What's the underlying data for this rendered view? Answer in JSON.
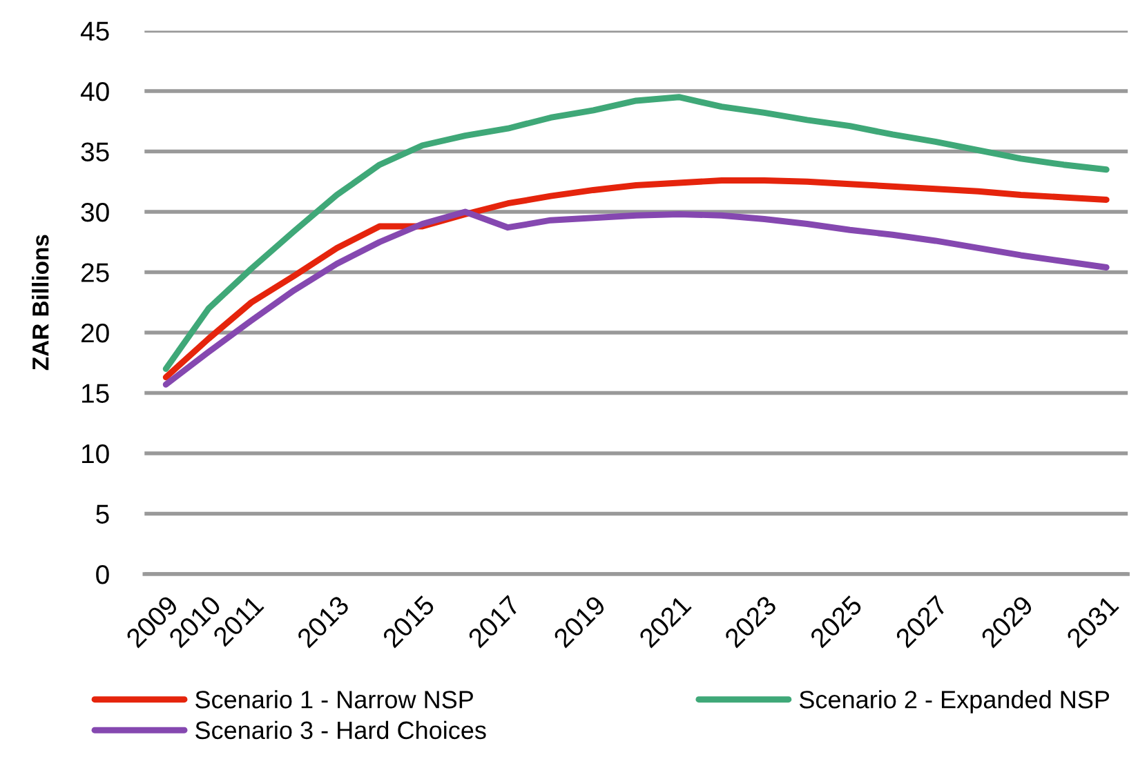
{
  "chart_data": {
    "type": "line",
    "ylabel": "ZAR Billions",
    "categories": [
      "2009",
      "2010",
      "2011",
      null,
      "2013",
      null,
      "2015",
      null,
      "2017",
      null,
      "2019",
      null,
      "2021",
      null,
      "2023",
      null,
      "2025",
      null,
      "2027",
      null,
      "2029",
      null,
      "2031"
    ],
    "series": [
      {
        "name": "Scenario 1 - Narrow NSP",
        "color": "#e5240c",
        "values": [
          16.3,
          19.5,
          22.5,
          24.7,
          27.0,
          28.8,
          28.8,
          29.8,
          30.7,
          31.3,
          31.8,
          32.2,
          32.4,
          32.6,
          32.6,
          32.5,
          32.3,
          32.1,
          31.9,
          31.7,
          31.4,
          31.2,
          31.0
        ]
      },
      {
        "name": "Scenario 2 - Expanded NSP",
        "color": "#3fa878",
        "values": [
          17.0,
          22.0,
          25.3,
          28.4,
          31.4,
          33.9,
          35.5,
          36.3,
          36.9,
          37.8,
          38.4,
          39.2,
          39.5,
          38.7,
          38.2,
          37.6,
          37.1,
          36.4,
          35.8,
          35.1,
          34.4,
          33.9,
          33.5
        ]
      },
      {
        "name": "Scenario 3 - Hard Choices",
        "color": "#8548b0",
        "values": [
          15.7,
          18.4,
          21.0,
          23.5,
          25.7,
          27.5,
          29.0,
          30.0,
          28.7,
          29.3,
          29.5,
          29.7,
          29.8,
          29.7,
          29.4,
          29.0,
          28.5,
          28.1,
          27.6,
          27.0,
          26.4,
          25.9,
          25.4
        ]
      }
    ],
    "ylim": [
      0,
      45
    ],
    "yticks": [
      0,
      5,
      10,
      15,
      20,
      25,
      30,
      35,
      40,
      45
    ],
    "grid": "y",
    "legend": "bottom",
    "line_style": "solid"
  }
}
